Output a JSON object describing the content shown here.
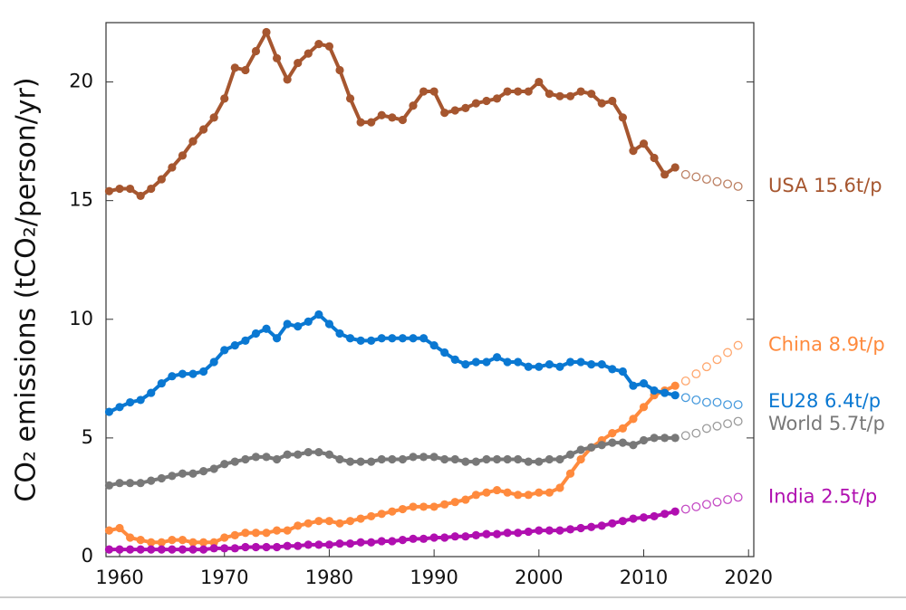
{
  "chart_data": {
    "type": "line",
    "ylabel": "CO₂ emissions (tCO₂/person/yr)",
    "x": [
      1959,
      1960,
      1961,
      1962,
      1963,
      1964,
      1965,
      1966,
      1967,
      1968,
      1969,
      1970,
      1971,
      1972,
      1973,
      1974,
      1975,
      1976,
      1977,
      1978,
      1979,
      1980,
      1981,
      1982,
      1983,
      1984,
      1985,
      1986,
      1987,
      1988,
      1989,
      1990,
      1991,
      1992,
      1993,
      1994,
      1995,
      1996,
      1997,
      1998,
      1999,
      2000,
      2001,
      2002,
      2003,
      2004,
      2005,
      2006,
      2007,
      2008,
      2009,
      2010,
      2011,
      2012,
      2013,
      2014,
      2015,
      2016,
      2017,
      2018,
      2019
    ],
    "xlim": [
      1958.7,
      2020.5
    ],
    "xticks": [
      1960,
      1970,
      1980,
      1990,
      2000,
      2010,
      2020
    ],
    "ylim": [
      0,
      22.5
    ],
    "yticks": [
      0,
      5,
      10,
      15,
      20
    ],
    "series": [
      {
        "name": "USA 15.6t/p",
        "color": "#a6562f",
        "values": [
          15.4,
          15.5,
          15.5,
          15.2,
          15.5,
          15.9,
          16.4,
          16.9,
          17.5,
          18.0,
          18.5,
          19.3,
          20.6,
          20.5,
          21.3,
          22.1,
          21.0,
          20.1,
          20.8,
          21.2,
          21.6,
          21.5,
          20.5,
          19.3,
          18.3,
          18.3,
          18.6,
          18.5,
          18.4,
          19.0,
          19.6,
          19.6,
          18.7,
          18.8,
          18.9,
          19.1,
          19.2,
          19.3,
          19.6,
          19.6,
          19.6,
          20.0,
          19.5,
          19.4,
          19.4,
          19.6,
          19.5,
          19.1,
          19.2,
          18.5,
          17.1,
          17.4,
          16.8,
          16.1,
          16.4,
          null,
          null,
          null,
          null,
          null,
          null
        ],
        "projected": [
          null,
          null,
          null,
          null,
          null,
          null,
          null,
          null,
          null,
          null,
          null,
          null,
          null,
          null,
          null,
          null,
          null,
          null,
          null,
          null,
          null,
          null,
          null,
          null,
          null,
          null,
          null,
          null,
          null,
          null,
          null,
          null,
          null,
          null,
          null,
          null,
          null,
          null,
          null,
          null,
          null,
          null,
          null,
          null,
          null,
          null,
          null,
          null,
          null,
          null,
          null,
          null,
          null,
          null,
          null,
          16.1,
          16.0,
          15.9,
          15.8,
          15.7,
          15.6
        ]
      },
      {
        "name": "China 8.9t/p",
        "color": "#ff8a3d",
        "values": [
          1.1,
          1.2,
          0.8,
          0.7,
          0.6,
          0.6,
          0.7,
          0.7,
          0.6,
          0.6,
          0.6,
          0.8,
          0.9,
          1.0,
          1.0,
          1.0,
          1.1,
          1.1,
          1.3,
          1.4,
          1.5,
          1.5,
          1.4,
          1.5,
          1.6,
          1.7,
          1.8,
          1.9,
          2.0,
          2.1,
          2.1,
          2.1,
          2.2,
          2.3,
          2.4,
          2.6,
          2.7,
          2.8,
          2.7,
          2.6,
          2.6,
          2.7,
          2.7,
          2.9,
          3.5,
          4.1,
          4.6,
          4.9,
          5.2,
          5.4,
          5.8,
          6.3,
          6.8,
          7.0,
          7.2,
          null,
          null,
          null,
          null,
          null,
          null
        ],
        "projected": [
          null,
          null,
          null,
          null,
          null,
          null,
          null,
          null,
          null,
          null,
          null,
          null,
          null,
          null,
          null,
          null,
          null,
          null,
          null,
          null,
          null,
          null,
          null,
          null,
          null,
          null,
          null,
          null,
          null,
          null,
          null,
          null,
          null,
          null,
          null,
          null,
          null,
          null,
          null,
          null,
          null,
          null,
          null,
          null,
          null,
          null,
          null,
          null,
          null,
          null,
          null,
          null,
          null,
          null,
          null,
          7.4,
          7.7,
          8.0,
          8.3,
          8.6,
          8.9
        ]
      },
      {
        "name": "EU28 6.4t/p",
        "color": "#0a78d2",
        "values": [
          6.1,
          6.3,
          6.5,
          6.6,
          6.9,
          7.3,
          7.6,
          7.7,
          7.7,
          7.8,
          8.2,
          8.7,
          8.9,
          9.1,
          9.4,
          9.6,
          9.2,
          9.8,
          9.7,
          9.9,
          10.2,
          9.8,
          9.4,
          9.2,
          9.1,
          9.1,
          9.2,
          9.2,
          9.2,
          9.2,
          9.2,
          8.9,
          8.6,
          8.3,
          8.1,
          8.2,
          8.2,
          8.4,
          8.2,
          8.2,
          8.0,
          8.0,
          8.1,
          8.0,
          8.2,
          8.2,
          8.1,
          8.1,
          7.9,
          7.8,
          7.2,
          7.3,
          7.0,
          6.9,
          6.8,
          null,
          null,
          null,
          null,
          null,
          null
        ],
        "projected": [
          null,
          null,
          null,
          null,
          null,
          null,
          null,
          null,
          null,
          null,
          null,
          null,
          null,
          null,
          null,
          null,
          null,
          null,
          null,
          null,
          null,
          null,
          null,
          null,
          null,
          null,
          null,
          null,
          null,
          null,
          null,
          null,
          null,
          null,
          null,
          null,
          null,
          null,
          null,
          null,
          null,
          null,
          null,
          null,
          null,
          null,
          null,
          null,
          null,
          null,
          null,
          null,
          null,
          null,
          null,
          6.7,
          6.6,
          6.5,
          6.5,
          6.4,
          6.4
        ]
      },
      {
        "name": "World 5.7t/p",
        "color": "#787878",
        "values": [
          3.0,
          3.1,
          3.1,
          3.1,
          3.2,
          3.3,
          3.4,
          3.5,
          3.5,
          3.6,
          3.7,
          3.9,
          4.0,
          4.1,
          4.2,
          4.2,
          4.1,
          4.3,
          4.3,
          4.4,
          4.4,
          4.3,
          4.1,
          4.0,
          4.0,
          4.0,
          4.1,
          4.1,
          4.1,
          4.2,
          4.2,
          4.2,
          4.1,
          4.1,
          4.0,
          4.0,
          4.1,
          4.1,
          4.1,
          4.1,
          4.0,
          4.0,
          4.1,
          4.1,
          4.3,
          4.5,
          4.6,
          4.7,
          4.8,
          4.8,
          4.7,
          4.9,
          5.0,
          5.0,
          5.0,
          null,
          null,
          null,
          null,
          null,
          null
        ],
        "projected": [
          null,
          null,
          null,
          null,
          null,
          null,
          null,
          null,
          null,
          null,
          null,
          null,
          null,
          null,
          null,
          null,
          null,
          null,
          null,
          null,
          null,
          null,
          null,
          null,
          null,
          null,
          null,
          null,
          null,
          null,
          null,
          null,
          null,
          null,
          null,
          null,
          null,
          null,
          null,
          null,
          null,
          null,
          null,
          null,
          null,
          null,
          null,
          null,
          null,
          null,
          null,
          null,
          null,
          null,
          null,
          5.1,
          5.2,
          5.4,
          5.5,
          5.6,
          5.7
        ]
      },
      {
        "name": "India 2.5t/p",
        "color": "#b00fb0",
        "values": [
          0.3,
          0.3,
          0.3,
          0.3,
          0.3,
          0.3,
          0.3,
          0.3,
          0.3,
          0.3,
          0.35,
          0.35,
          0.35,
          0.4,
          0.4,
          0.4,
          0.4,
          0.45,
          0.45,
          0.5,
          0.5,
          0.5,
          0.55,
          0.55,
          0.6,
          0.6,
          0.65,
          0.65,
          0.7,
          0.75,
          0.75,
          0.8,
          0.8,
          0.85,
          0.85,
          0.9,
          0.95,
          0.95,
          1.0,
          1.0,
          1.05,
          1.1,
          1.1,
          1.1,
          1.15,
          1.2,
          1.25,
          1.3,
          1.4,
          1.5,
          1.6,
          1.65,
          1.7,
          1.8,
          1.9,
          null,
          null,
          null,
          null,
          null,
          null
        ],
        "projected": [
          null,
          null,
          null,
          null,
          null,
          null,
          null,
          null,
          null,
          null,
          null,
          null,
          null,
          null,
          null,
          null,
          null,
          null,
          null,
          null,
          null,
          null,
          null,
          null,
          null,
          null,
          null,
          null,
          null,
          null,
          null,
          null,
          null,
          null,
          null,
          null,
          null,
          null,
          null,
          null,
          null,
          null,
          null,
          null,
          null,
          null,
          null,
          null,
          null,
          null,
          null,
          null,
          null,
          null,
          null,
          2.0,
          2.1,
          2.2,
          2.3,
          2.4,
          2.5
        ]
      }
    ]
  }
}
